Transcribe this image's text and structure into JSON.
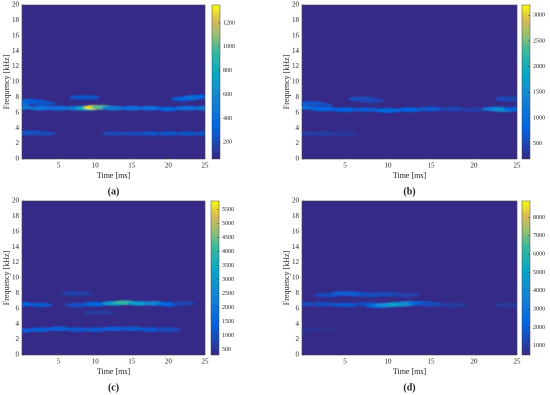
{
  "chart_data": [
    {
      "type": "heatmap",
      "caption": "(a)",
      "xlabel": "Time [ms]",
      "ylabel": "Frequency [kHz]",
      "xlim": [
        0,
        25
      ],
      "xticks": [
        5,
        10,
        15,
        20,
        25
      ],
      "ylim": [
        0,
        20
      ],
      "yticks": [
        0,
        2,
        4,
        6,
        8,
        10,
        12,
        14,
        16,
        18,
        20
      ],
      "clim": [
        60,
        1350
      ],
      "cticks": [
        200,
        400,
        600,
        800,
        1000,
        1200
      ],
      "colormap": "parula",
      "ridges": [
        {
          "x": [
            0,
            2.5,
            5,
            7.5,
            9,
            10,
            11,
            12.5,
            15,
            17.5,
            20,
            22.5,
            25
          ],
          "y": [
            6.7,
            6.6,
            6.6,
            6.6,
            6.6,
            6.7,
            6.7,
            6.6,
            6.6,
            6.6,
            6.5,
            6.6,
            6.6
          ],
          "values": [
            500,
            450,
            400,
            500,
            800,
            1300,
            1000,
            500,
            400,
            400,
            350,
            400,
            450
          ]
        },
        {
          "x": [
            0,
            1,
            2,
            3
          ],
          "y": [
            7.3,
            7.5,
            7.4,
            7.2
          ],
          "values": [
            400,
            350,
            300,
            250
          ]
        },
        {
          "x": [
            22,
            23.5,
            25
          ],
          "y": [
            7.8,
            8,
            8.1
          ],
          "values": [
            300,
            400,
            350
          ]
        },
        {
          "x": [
            0,
            1.5,
            3
          ],
          "y": [
            3.4,
            3.4,
            3.3
          ],
          "values": [
            250,
            250,
            200
          ]
        },
        {
          "x": [
            12.5,
            15,
            17.5,
            20,
            22.5,
            25
          ],
          "y": [
            3.3,
            3.3,
            3.3,
            3.3,
            3.3,
            3.3
          ],
          "values": [
            200,
            200,
            250,
            250,
            250,
            250
          ]
        },
        {
          "x": [
            8,
            9
          ],
          "y": [
            8,
            8
          ],
          "values": [
            250,
            250
          ]
        }
      ]
    },
    {
      "type": "heatmap",
      "caption": "(b)",
      "xlabel": "Time [ms]",
      "ylabel": "Frequency [kHz]",
      "xlim": [
        0,
        25
      ],
      "xticks": [
        5,
        10,
        15,
        20,
        25
      ],
      "ylim": [
        0,
        20
      ],
      "yticks": [
        0,
        2,
        4,
        6,
        8,
        10,
        12,
        14,
        16,
        18,
        20
      ],
      "clim": [
        200,
        3200
      ],
      "cticks": [
        500,
        1000,
        1500,
        2000,
        2500,
        3000
      ],
      "colormap": "parula",
      "ridges": [
        {
          "x": [
            0,
            2.5,
            5,
            7.5,
            10,
            12.5,
            15,
            17.5,
            20,
            22.5,
            23.5,
            25
          ],
          "y": [
            6.7,
            6.5,
            6.4,
            6.4,
            6.3,
            6.4,
            6.5,
            6.5,
            6.4,
            6.5,
            6.4,
            6.5
          ],
          "values": [
            1000,
            900,
            800,
            700,
            900,
            800,
            700,
            500,
            400,
            1200,
            1500,
            800
          ]
        },
        {
          "x": [
            1,
            2,
            7,
            8
          ],
          "y": [
            7.2,
            7,
            7.8,
            7.6
          ],
          "values": [
            700,
            600,
            600,
            500
          ]
        },
        {
          "x": [
            0,
            2.5,
            5
          ],
          "y": [
            3.3,
            3.3,
            3.3
          ],
          "values": [
            400,
            400,
            350
          ]
        },
        {
          "x": [
            24,
            25
          ],
          "y": [
            7.8,
            7.8
          ],
          "values": [
            600,
            500
          ]
        }
      ]
    },
    {
      "type": "heatmap",
      "caption": "(c)",
      "xlabel": "Time [ms]",
      "ylabel": "Frequency [kHz]",
      "xlim": [
        0,
        25
      ],
      "xticks": [
        5,
        10,
        15,
        20,
        25
      ],
      "ylim": [
        0,
        20
      ],
      "yticks": [
        0,
        2,
        4,
        6,
        8,
        10,
        12,
        14,
        16,
        18,
        20
      ],
      "clim": [
        300,
        5800
      ],
      "cticks": [
        500,
        1000,
        1500,
        2000,
        2500,
        3000,
        3500,
        4000,
        4500,
        5000,
        5500
      ],
      "colormap": "parula",
      "ridges": [
        {
          "x": [
            0,
            2.5,
            7.5,
            10,
            12.5,
            14,
            16,
            18,
            20,
            22
          ],
          "y": [
            6.6,
            6.5,
            6.5,
            6.6,
            6.7,
            6.8,
            6.7,
            6.7,
            6.6,
            6.7
          ],
          "values": [
            1500,
            1200,
            1000,
            1500,
            3000,
            4000,
            3000,
            2500,
            1500,
            800
          ]
        },
        {
          "x": [
            0,
            2.5,
            5,
            7.5,
            10,
            12.5,
            15,
            17.5,
            20
          ],
          "y": [
            3.2,
            3.3,
            3.4,
            3.3,
            3.3,
            3.4,
            3.4,
            3.3,
            3.3
          ],
          "values": [
            1300,
            1300,
            1300,
            1200,
            1200,
            1300,
            1200,
            1200,
            1000
          ]
        },
        {
          "x": [
            7,
            8
          ],
          "y": [
            8,
            8
          ],
          "values": [
            800,
            700
          ]
        },
        {
          "x": [
            10,
            11
          ],
          "y": [
            5.5,
            5.5
          ],
          "values": [
            600,
            600
          ]
        }
      ]
    },
    {
      "type": "heatmap",
      "caption": "(d)",
      "xlabel": "Time [ms]",
      "ylabel": "Frequency [kHz]",
      "xlim": [
        0,
        25
      ],
      "xticks": [
        5,
        10,
        15,
        20,
        25
      ],
      "ylim": [
        0,
        20
      ],
      "yticks": [
        0,
        2,
        4,
        6,
        8,
        10,
        12,
        14,
        16,
        18,
        20
      ],
      "clim": [
        500,
        8900
      ],
      "cticks": [
        1000,
        2000,
        3000,
        4000,
        5000,
        6000,
        7000,
        8000
      ],
      "colormap": "parula",
      "ridges": [
        {
          "x": [
            0,
            2.5,
            5,
            7.5,
            9,
            10,
            11.5,
            12.5,
            14,
            15,
            17.5
          ],
          "y": [
            6.6,
            6.6,
            6.5,
            6.6,
            6.4,
            6.5,
            6.6,
            6.7,
            6.7,
            6.6,
            6.5
          ],
          "values": [
            1500,
            1500,
            1800,
            1500,
            2500,
            4000,
            5000,
            4000,
            2500,
            1500,
            1000
          ]
        },
        {
          "x": [
            3,
            5,
            6.5,
            8,
            10,
            12
          ],
          "y": [
            7.8,
            8,
            7.9,
            7.8,
            7.9,
            7.8
          ],
          "values": [
            1500,
            2000,
            2000,
            1500,
            1500,
            1200
          ]
        },
        {
          "x": [
            0,
            2.5
          ],
          "y": [
            3.3,
            3.3
          ],
          "values": [
            800,
            700
          ]
        },
        {
          "x": [
            24,
            25
          ],
          "y": [
            6.5,
            6.5
          ],
          "values": [
            1000,
            900
          ]
        }
      ]
    }
  ]
}
